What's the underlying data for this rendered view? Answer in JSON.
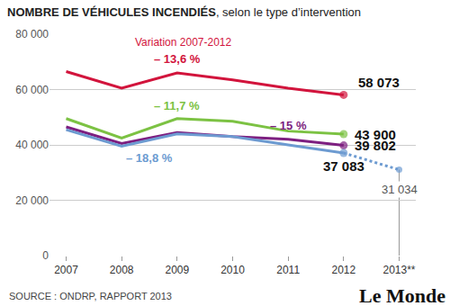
{
  "chart_data": {
    "type": "line",
    "title": "NOMBRE DE VÉHICULES INCENDIÉS, selon le type d’intervention",
    "annotations": [
      "Variation 2007-2012"
    ],
    "source": "SOURCE : ONDRP, RAPPORT 2013",
    "credit": "Le Monde",
    "categories": [
      "2007",
      "2008",
      "2009",
      "2010",
      "2011",
      "2012",
      "2013**"
    ],
    "ylim": [
      0,
      80000
    ],
    "yticks": [
      0,
      {
        "value": 20000,
        "label": "20 000"
      },
      {
        "value": 40000,
        "label": "40 000"
      },
      {
        "value": 60000,
        "label": "60 000"
      },
      {
        "value": 80000,
        "label": "80 000"
      }
    ],
    "grid": true,
    "marker": "circle",
    "data_labels": true,
    "series": [
      {
        "color": "#d2143c",
        "line_style": "solid",
        "values": [
          66500,
          60500,
          66000,
          63500,
          60500,
          58073,
          null
        ],
        "value_labels": [
          null,
          null,
          null,
          null,
          null,
          "58 073",
          null
        ],
        "variation": "– 13,6 %"
      },
      {
        "color": "#7cc243",
        "line_style": "solid",
        "values": [
          49500,
          42500,
          49500,
          48500,
          45000,
          43900,
          null
        ],
        "value_labels": [
          null,
          null,
          null,
          null,
          null,
          "43 900",
          null
        ],
        "variation": "– 11,7 %"
      },
      {
        "color": "#7d1f80",
        "line_style": "solid",
        "values": [
          46500,
          40500,
          44500,
          43000,
          42000,
          39802,
          null
        ],
        "value_labels": [
          null,
          null,
          null,
          null,
          null,
          "39 802",
          null
        ],
        "variation": "– 15 %"
      },
      {
        "color": "#6d9bd1",
        "line_style": "solid",
        "values": [
          45500,
          39500,
          44000,
          43000,
          40000,
          37083,
          null
        ],
        "value_labels": [
          null,
          null,
          null,
          null,
          null,
          "37 083",
          null
        ],
        "variation": "– 18,8 %"
      },
      {
        "color": "#6d9bd1",
        "line_style": "dotted",
        "values": [
          null,
          null,
          null,
          null,
          null,
          37083,
          31034
        ],
        "value_labels": [
          null,
          null,
          null,
          null,
          null,
          null,
          "31 034"
        ]
      }
    ]
  }
}
